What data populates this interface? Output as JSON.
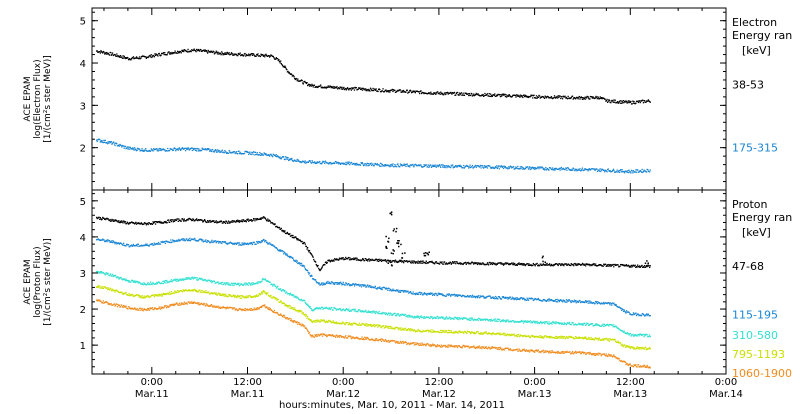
{
  "chart_data": [
    {
      "type": "scatter",
      "panel": "electron",
      "ylabel": [
        "ACE EPAM",
        "log(Electron Flux)",
        "[1/(cm²s ster MeV)]"
      ],
      "ylim": [
        1,
        5.3
      ],
      "yticks": [
        2,
        3,
        4,
        5
      ],
      "legend_title": [
        "Electron",
        "Energy ran"
      ],
      "legend_unit": "[keV]",
      "series": [
        {
          "name": "38-53",
          "color": "#000000",
          "points": [
            [
              -7,
              4.3
            ],
            [
              -5,
              4.22
            ],
            [
              -3,
              4.12
            ],
            [
              -1,
              4.15
            ],
            [
              1,
              4.22
            ],
            [
              3,
              4.28
            ],
            [
              5,
              4.32
            ],
            [
              7,
              4.28
            ],
            [
              9,
              4.24
            ],
            [
              11,
              4.22
            ],
            [
              13,
              4.2
            ],
            [
              15,
              4.18
            ],
            [
              16,
              4.05
            ],
            [
              17,
              3.82
            ],
            [
              18,
              3.65
            ],
            [
              19,
              3.55
            ],
            [
              20,
              3.48
            ],
            [
              24,
              3.42
            ],
            [
              30,
              3.36
            ],
            [
              36,
              3.3
            ],
            [
              42,
              3.26
            ],
            [
              48,
              3.22
            ],
            [
              54,
              3.19
            ],
            [
              56,
              3.2
            ],
            [
              57,
              3.12
            ],
            [
              60,
              3.08
            ],
            [
              62.5,
              3.12
            ]
          ]
        },
        {
          "name": "175-315",
          "color": "#1a86d4",
          "points": [
            [
              -7,
              2.2
            ],
            [
              -5,
              2.12
            ],
            [
              -3,
              2.0
            ],
            [
              -1,
              1.96
            ],
            [
              1,
              1.96
            ],
            [
              3,
              1.98
            ],
            [
              5,
              1.98
            ],
            [
              7,
              1.96
            ],
            [
              9,
              1.92
            ],
            [
              11,
              1.9
            ],
            [
              13,
              1.88
            ],
            [
              15,
              1.84
            ],
            [
              17,
              1.75
            ],
            [
              19,
              1.68
            ],
            [
              22,
              1.66
            ],
            [
              26,
              1.63
            ],
            [
              30,
              1.6
            ],
            [
              36,
              1.58
            ],
            [
              42,
              1.56
            ],
            [
              48,
              1.53
            ],
            [
              54,
              1.5
            ],
            [
              57,
              1.48
            ],
            [
              60,
              1.45
            ],
            [
              62.5,
              1.48
            ]
          ]
        }
      ]
    },
    {
      "type": "scatter",
      "panel": "proton",
      "ylabel": [
        "ACE EPAM",
        "log(Proton Flux)",
        "[1/(cm²s ster MeV)]"
      ],
      "ylim": [
        0.2,
        5.3
      ],
      "yticks": [
        1,
        2,
        3,
        4,
        5
      ],
      "legend_title": [
        "Proton",
        "Energy ran"
      ],
      "legend_unit": "[keV]",
      "xlabel": "hours:minutes, Mar. 10, 2011 - Mar. 14, 2011",
      "xlim": [
        -7.5,
        72
      ],
      "xticks": [
        {
          "x": 0,
          "time": "0:00",
          "date": "Mar.11"
        },
        {
          "x": 12,
          "time": "12:00",
          "date": "Mar.11"
        },
        {
          "x": 24,
          "time": "0:00",
          "date": "Mar.12"
        },
        {
          "x": 36,
          "time": "12:00",
          "date": "Mar.12"
        },
        {
          "x": 48,
          "time": "0:00",
          "date": "Mar.13"
        },
        {
          "x": 60,
          "time": "12:00",
          "date": "Mar.13"
        },
        {
          "x": 72,
          "time": "0:00",
          "date": "Mar.14"
        }
      ],
      "series": [
        {
          "name": "47-68",
          "color": "#000000",
          "points": [
            [
              -7,
              4.55
            ],
            [
              -5,
              4.48
            ],
            [
              -3,
              4.4
            ],
            [
              -1,
              4.38
            ],
            [
              1,
              4.42
            ],
            [
              3,
              4.48
            ],
            [
              5,
              4.5
            ],
            [
              7,
              4.45
            ],
            [
              9,
              4.42
            ],
            [
              11,
              4.45
            ],
            [
              13,
              4.5
            ],
            [
              14,
              4.55
            ],
            [
              15,
              4.4
            ],
            [
              17,
              4.1
            ],
            [
              19,
              3.85
            ],
            [
              20,
              3.5
            ],
            [
              21,
              3.1
            ],
            [
              22,
              3.35
            ],
            [
              24,
              3.42
            ],
            [
              27,
              3.38
            ],
            [
              30,
              3.35
            ],
            [
              33,
              3.32
            ],
            [
              36,
              3.3
            ],
            [
              42,
              3.28
            ],
            [
              48,
              3.25
            ],
            [
              54,
              3.25
            ],
            [
              58,
              3.22
            ],
            [
              62.5,
              3.2
            ]
          ]
        },
        {
          "name": "115-195",
          "color": "#1a86d4",
          "points": [
            [
              -7,
              3.95
            ],
            [
              -5,
              3.88
            ],
            [
              -3,
              3.78
            ],
            [
              -1,
              3.78
            ],
            [
              1,
              3.85
            ],
            [
              3,
              3.92
            ],
            [
              5,
              3.95
            ],
            [
              7,
              3.9
            ],
            [
              9,
              3.85
            ],
            [
              11,
              3.82
            ],
            [
              13,
              3.85
            ],
            [
              14,
              3.92
            ],
            [
              15,
              3.78
            ],
            [
              17,
              3.5
            ],
            [
              19,
              3.2
            ],
            [
              20,
              2.9
            ],
            [
              21,
              2.7
            ],
            [
              22,
              2.75
            ],
            [
              24,
              2.72
            ],
            [
              27,
              2.65
            ],
            [
              30,
              2.55
            ],
            [
              33,
              2.45
            ],
            [
              36,
              2.42
            ],
            [
              42,
              2.35
            ],
            [
              48,
              2.28
            ],
            [
              54,
              2.22
            ],
            [
              58,
              2.15
            ],
            [
              59,
              1.98
            ],
            [
              60,
              1.88
            ],
            [
              62.5,
              1.85
            ]
          ]
        },
        {
          "name": "310-580",
          "color": "#33e0d0",
          "points": [
            [
              -7,
              3.05
            ],
            [
              -5,
              2.95
            ],
            [
              -3,
              2.8
            ],
            [
              -1,
              2.72
            ],
            [
              1,
              2.75
            ],
            [
              3,
              2.82
            ],
            [
              5,
              2.88
            ],
            [
              7,
              2.8
            ],
            [
              9,
              2.72
            ],
            [
              11,
              2.7
            ],
            [
              13,
              2.72
            ],
            [
              14,
              2.85
            ],
            [
              15,
              2.7
            ],
            [
              17,
              2.45
            ],
            [
              19,
              2.25
            ],
            [
              20,
              2.0
            ],
            [
              21,
              2.05
            ],
            [
              24,
              2.0
            ],
            [
              27,
              1.95
            ],
            [
              30,
              1.88
            ],
            [
              33,
              1.8
            ],
            [
              36,
              1.78
            ],
            [
              42,
              1.72
            ],
            [
              48,
              1.65
            ],
            [
              54,
              1.6
            ],
            [
              58,
              1.55
            ],
            [
              59,
              1.4
            ],
            [
              60,
              1.3
            ],
            [
              62.5,
              1.28
            ]
          ]
        },
        {
          "name": "795-1193",
          "color": "#c8e000",
          "points": [
            [
              -7,
              2.65
            ],
            [
              -5,
              2.55
            ],
            [
              -3,
              2.42
            ],
            [
              -1,
              2.35
            ],
            [
              1,
              2.4
            ],
            [
              3,
              2.5
            ],
            [
              5,
              2.55
            ],
            [
              7,
              2.48
            ],
            [
              9,
              2.4
            ],
            [
              11,
              2.35
            ],
            [
              13,
              2.38
            ],
            [
              14,
              2.5
            ],
            [
              15,
              2.35
            ],
            [
              17,
              2.1
            ],
            [
              19,
              1.9
            ],
            [
              20,
              1.65
            ],
            [
              21,
              1.7
            ],
            [
              24,
              1.62
            ],
            [
              27,
              1.58
            ],
            [
              30,
              1.5
            ],
            [
              33,
              1.42
            ],
            [
              36,
              1.4
            ],
            [
              42,
              1.35
            ],
            [
              48,
              1.25
            ],
            [
              54,
              1.22
            ],
            [
              58,
              1.15
            ],
            [
              59,
              1.0
            ],
            [
              60,
              0.95
            ],
            [
              62.5,
              0.92
            ]
          ]
        },
        {
          "name": "1060-1900",
          "color": "#f08c1e",
          "points": [
            [
              -7,
              2.25
            ],
            [
              -5,
              2.15
            ],
            [
              -3,
              2.05
            ],
            [
              -1,
              2.0
            ],
            [
              1,
              2.05
            ],
            [
              3,
              2.15
            ],
            [
              5,
              2.2
            ],
            [
              7,
              2.12
            ],
            [
              9,
              2.05
            ],
            [
              11,
              2.0
            ],
            [
              13,
              2.02
            ],
            [
              14,
              2.12
            ],
            [
              15,
              1.98
            ],
            [
              17,
              1.75
            ],
            [
              19,
              1.55
            ],
            [
              20,
              1.25
            ],
            [
              21,
              1.3
            ],
            [
              24,
              1.25
            ],
            [
              27,
              1.2
            ],
            [
              30,
              1.12
            ],
            [
              33,
              1.05
            ],
            [
              36,
              1.0
            ],
            [
              42,
              0.95
            ],
            [
              48,
              0.85
            ],
            [
              54,
              0.8
            ],
            [
              58,
              0.72
            ],
            [
              59,
              0.55
            ],
            [
              60,
              0.45
            ],
            [
              62.5,
              0.42
            ]
          ]
        }
      ],
      "spikes": [
        {
          "color": "#000000",
          "points": [
            [
              30,
              4.68
            ],
            [
              30.4,
              4.2
            ],
            [
              30.7,
              3.9
            ],
            [
              29.5,
              3.95
            ],
            [
              29.2,
              3.7
            ],
            [
              31,
              3.8
            ],
            [
              31.4,
              3.5
            ],
            [
              30.2,
              3.6
            ],
            [
              29.8,
              3.3
            ],
            [
              34,
              3.5
            ],
            [
              34.5,
              3.6
            ],
            [
              49,
              3.4
            ],
            [
              62,
              3.3
            ]
          ]
        }
      ]
    }
  ]
}
